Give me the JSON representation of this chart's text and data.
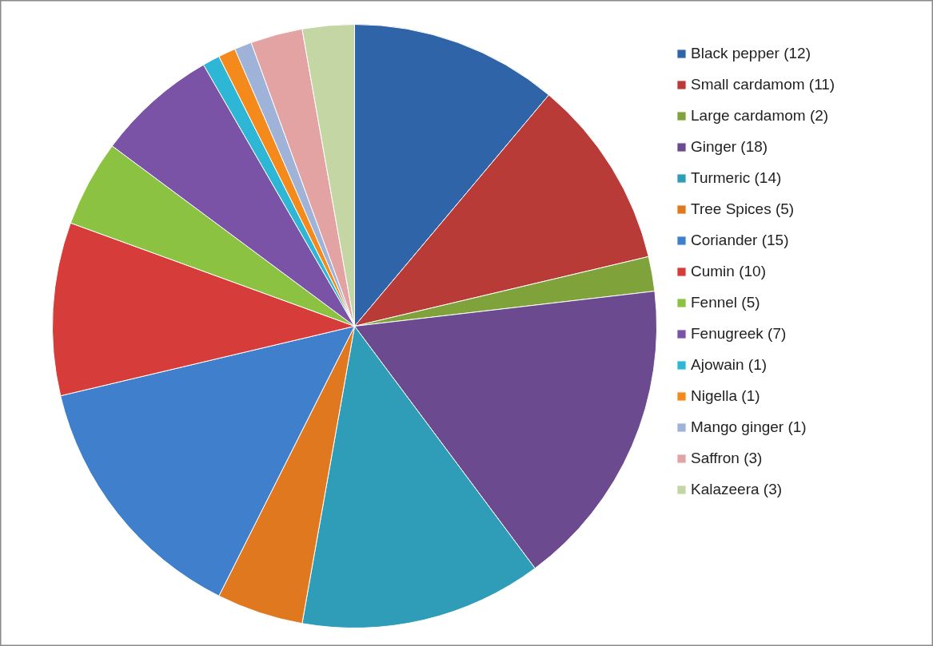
{
  "chart_data": {
    "type": "pie",
    "categories": [
      "Black pepper (12)",
      "Small cardamom (11)",
      "Large cardamom (2)",
      "Ginger (18)",
      "Turmeric (14)",
      "Tree Spices (5)",
      "Coriander (15)",
      "Cumin (10)",
      "Fennel (5)",
      "Fenugreek (7)",
      "Ajowain (1)",
      "Nigella (1)",
      "Mango ginger (1)",
      "Saffron (3)",
      "Kalazeera (3)"
    ],
    "values": [
      12,
      11,
      2,
      18,
      14,
      5,
      15,
      10,
      5,
      7,
      1,
      1,
      1,
      3,
      3
    ],
    "colors": [
      "#2f65a8",
      "#b83b38",
      "#7fa33a",
      "#6b4a8f",
      "#2f9db8",
      "#e0781f",
      "#3f7fcc",
      "#d63d3a",
      "#8bc241",
      "#7a52a6",
      "#2eb6d6",
      "#f4891c",
      "#9fb3d9",
      "#e3a3a3",
      "#c3d6a3"
    ],
    "legend": "right"
  }
}
